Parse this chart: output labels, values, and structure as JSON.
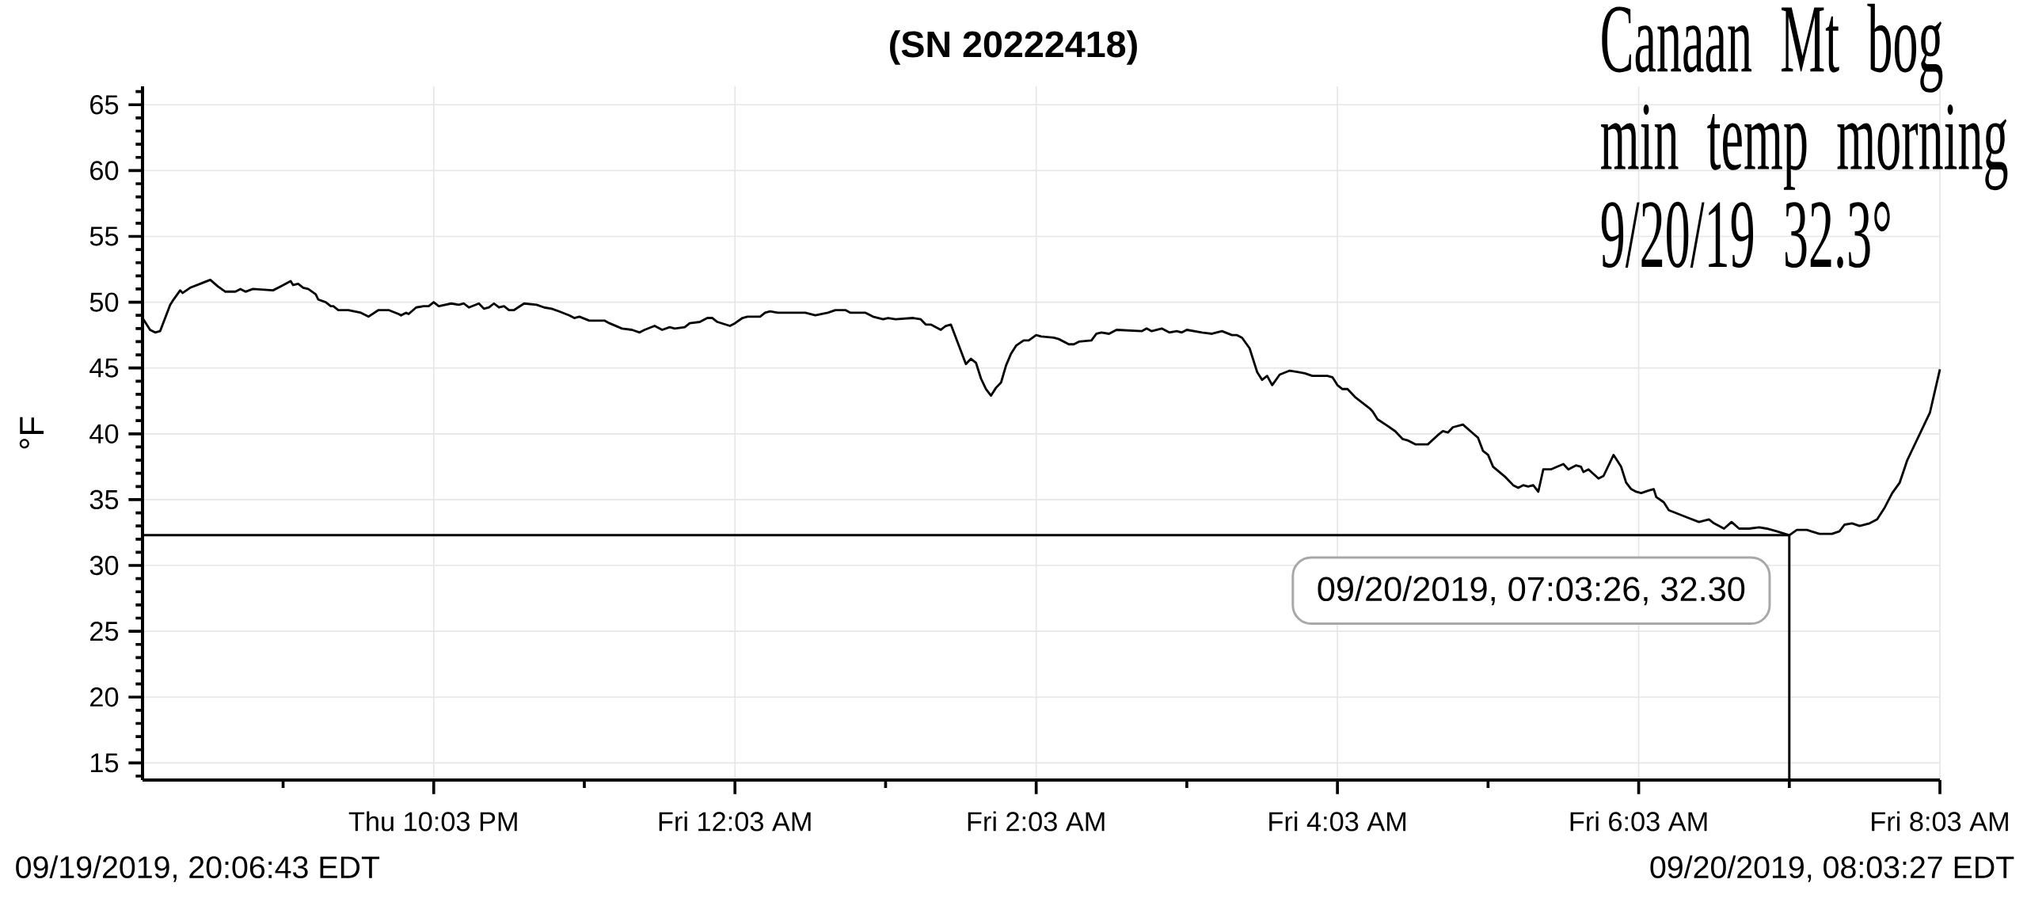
{
  "chart_data": {
    "type": "line",
    "title": "(SN 20222418)",
    "ylabel": "°F",
    "color": "#000000",
    "x": [
      "2019-09-19T20:07",
      "2019-09-19T20:10",
      "2019-09-19T20:12",
      "2019-09-19T20:14",
      "2019-09-19T20:18",
      "2019-09-19T20:19",
      "2019-09-19T20:22",
      "2019-09-19T20:23",
      "2019-09-19T20:26",
      "2019-09-19T20:30",
      "2019-09-19T20:34",
      "2019-09-19T20:37",
      "2019-09-19T20:40",
      "2019-09-19T20:44",
      "2019-09-19T20:46",
      "2019-09-19T20:48",
      "2019-09-19T20:51",
      "2019-09-19T20:59",
      "2019-09-19T21:02",
      "2019-09-19T21:06",
      "2019-09-19T21:07",
      "2019-09-19T21:09",
      "2019-09-19T21:11",
      "2019-09-19T21:13",
      "2019-09-19T21:16",
      "2019-09-19T21:17",
      "2019-09-19T21:20",
      "2019-09-19T21:22",
      "2019-09-19T21:23",
      "2019-09-19T21:25",
      "2019-09-19T21:29",
      "2019-09-19T21:34",
      "2019-09-19T21:37",
      "2019-09-19T21:41",
      "2019-09-19T21:45",
      "2019-09-19T21:49",
      "2019-09-19T21:50",
      "2019-09-19T21:52",
      "2019-09-19T21:53",
      "2019-09-19T21:56",
      "2019-09-19T21:59",
      "2019-09-19T22:01",
      "2019-09-19T22:03",
      "2019-09-19T22:05",
      "2019-09-19T22:10",
      "2019-09-19T22:13",
      "2019-09-19T22:15",
      "2019-09-19T22:17",
      "2019-09-19T22:21",
      "2019-09-19T22:23",
      "2019-09-19T22:25",
      "2019-09-19T22:27",
      "2019-09-19T22:29",
      "2019-09-19T22:31",
      "2019-09-19T22:33",
      "2019-09-19T22:35",
      "2019-09-19T22:39",
      "2019-09-19T22:44",
      "2019-09-19T22:47",
      "2019-09-19T22:50",
      "2019-09-19T22:53",
      "2019-09-19T22:57",
      "2019-09-19T22:59",
      "2019-09-19T23:01",
      "2019-09-19T23:05",
      "2019-09-19T23:11",
      "2019-09-19T23:13",
      "2019-09-19T23:18",
      "2019-09-19T23:22",
      "2019-09-19T23:25",
      "2019-09-19T23:27",
      "2019-09-19T23:31",
      "2019-09-19T23:34",
      "2019-09-19T23:37",
      "2019-09-19T23:39",
      "2019-09-19T23:43",
      "2019-09-19T23:45",
      "2019-09-19T23:49",
      "2019-09-19T23:52",
      "2019-09-19T23:54",
      "2019-09-19T23:56",
      "2019-09-20T00:01",
      "2019-09-20T00:03",
      "2019-09-20T00:06",
      "2019-09-20T00:08",
      "2019-09-20T00:13",
      "2019-09-20T00:15",
      "2019-09-20T00:17",
      "2019-09-20T00:20",
      "2019-09-20T00:26",
      "2019-09-20T00:31",
      "2019-09-20T00:35",
      "2019-09-20T00:40",
      "2019-09-20T00:43",
      "2019-09-20T00:47",
      "2019-09-20T00:49",
      "2019-09-20T00:55",
      "2019-09-20T00:58",
      "2019-09-20T01:02",
      "2019-09-20T01:04",
      "2019-09-20T01:07",
      "2019-09-20T01:14",
      "2019-09-20T01:17",
      "2019-09-20T01:19",
      "2019-09-20T01:21",
      "2019-09-20T01:25",
      "2019-09-20T01:27",
      "2019-09-20T01:29",
      "2019-09-20T01:31",
      "2019-09-20T01:33",
      "2019-09-20T01:35",
      "2019-09-20T01:37",
      "2019-09-20T01:39",
      "2019-09-20T01:41",
      "2019-09-20T01:43",
      "2019-09-20T01:45",
      "2019-09-20T01:47",
      "2019-09-20T01:49",
      "2019-09-20T01:51",
      "2019-09-20T01:53",
      "2019-09-20T01:55",
      "2019-09-20T01:58",
      "2019-09-20T02:00",
      "2019-09-20T02:03",
      "2019-09-20T02:05",
      "2019-09-20T02:10",
      "2019-09-20T02:12",
      "2019-09-20T02:16",
      "2019-09-20T02:18",
      "2019-09-20T02:20",
      "2019-09-20T02:25",
      "2019-09-20T02:27",
      "2019-09-20T02:29",
      "2019-09-20T02:32",
      "2019-09-20T02:35",
      "2019-09-20T02:45",
      "2019-09-20T02:47",
      "2019-09-20T02:49",
      "2019-09-20T02:53",
      "2019-09-20T02:56",
      "2019-09-20T02:59",
      "2019-09-20T03:01",
      "2019-09-20T03:03",
      "2019-09-20T03:09",
      "2019-09-20T03:13",
      "2019-09-20T03:17",
      "2019-09-20T03:21",
      "2019-09-20T03:23",
      "2019-09-20T03:25",
      "2019-09-20T03:28",
      "2019-09-20T03:31",
      "2019-09-20T03:33",
      "2019-09-20T03:35",
      "2019-09-20T03:37",
      "2019-09-20T03:40",
      "2019-09-20T03:44",
      "2019-09-20T03:47",
      "2019-09-20T03:50",
      "2019-09-20T03:53",
      "2019-09-20T03:59",
      "2019-09-20T04:01",
      "2019-09-20T04:03",
      "2019-09-20T04:05",
      "2019-09-20T04:07",
      "2019-09-20T04:10",
      "2019-09-20T04:16",
      "2019-09-20T04:17",
      "2019-09-20T04:19",
      "2019-09-20T04:23",
      "2019-09-20T04:26",
      "2019-09-20T04:29",
      "2019-09-20T04:31",
      "2019-09-20T04:34",
      "2019-09-20T04:39",
      "2019-09-20T04:43",
      "2019-09-20T04:45",
      "2019-09-20T04:47",
      "2019-09-20T04:49",
      "2019-09-20T04:53",
      "2019-09-20T04:56",
      "2019-09-20T04:59",
      "2019-09-20T05:01",
      "2019-09-20T05:03",
      "2019-09-20T05:05",
      "2019-09-20T05:10",
      "2019-09-20T05:13",
      "2019-09-20T05:15",
      "2019-09-20T05:17",
      "2019-09-20T05:19",
      "2019-09-20T05:21",
      "2019-09-20T05:23",
      "2019-09-20T05:25",
      "2019-09-20T05:28",
      "2019-09-20T05:33",
      "2019-09-20T05:35",
      "2019-09-20T05:38",
      "2019-09-20T05:40",
      "2019-09-20T05:41",
      "2019-09-20T05:43",
      "2019-09-20T05:47",
      "2019-09-20T05:49",
      "2019-09-20T05:53",
      "2019-09-20T05:56",
      "2019-09-20T05:58",
      "2019-09-20T06:00",
      "2019-09-20T06:02",
      "2019-09-20T06:04",
      "2019-09-20T06:07",
      "2019-09-20T06:09",
      "2019-09-20T06:10",
      "2019-09-20T06:13",
      "2019-09-20T06:15",
      "2019-09-20T06:19",
      "2019-09-20T06:23",
      "2019-09-20T06:27",
      "2019-09-20T06:31",
      "2019-09-20T06:33",
      "2019-09-20T06:37",
      "2019-09-20T06:40",
      "2019-09-20T06:43",
      "2019-09-20T06:47",
      "2019-09-20T06:51",
      "2019-09-20T06:54",
      "2019-09-20T06:58",
      "2019-09-20T07:03",
      "2019-09-20T07:06",
      "2019-09-20T07:10",
      "2019-09-20T07:15",
      "2019-09-20T07:20",
      "2019-09-20T07:23",
      "2019-09-20T07:25",
      "2019-09-20T07:28",
      "2019-09-20T07:31",
      "2019-09-20T07:35",
      "2019-09-20T07:38",
      "2019-09-20T07:41",
      "2019-09-20T07:44",
      "2019-09-20T07:47",
      "2019-09-20T07:50",
      "2019-09-20T07:52",
      "2019-09-20T07:55",
      "2019-09-20T07:59",
      "2019-09-20T08:03"
    ],
    "values": [
      48.8,
      47.9,
      47.7,
      47.8,
      49.8,
      50.1,
      50.9,
      50.7,
      51.1,
      51.4,
      51.7,
      51.2,
      50.8,
      50.8,
      51.0,
      50.8,
      51.0,
      50.9,
      51.2,
      51.6,
      51.3,
      51.4,
      51.1,
      51.0,
      50.6,
      50.2,
      50.0,
      49.7,
      49.7,
      49.4,
      49.4,
      49.2,
      48.9,
      49.4,
      49.4,
      49.1,
      49.0,
      49.2,
      49.1,
      49.6,
      49.7,
      49.7,
      50.0,
      49.7,
      49.9,
      49.8,
      49.9,
      49.6,
      49.9,
      49.5,
      49.6,
      49.9,
      49.6,
      49.7,
      49.4,
      49.4,
      49.9,
      49.8,
      49.6,
      49.5,
      49.3,
      49.0,
      48.8,
      48.9,
      48.6,
      48.6,
      48.4,
      48.0,
      47.9,
      47.7,
      47.9,
      48.2,
      47.9,
      48.1,
      48.0,
      48.1,
      48.4,
      48.5,
      48.8,
      48.8,
      48.5,
      48.2,
      48.4,
      48.8,
      48.9,
      48.9,
      49.2,
      49.3,
      49.2,
      49.2,
      49.2,
      49.0,
      49.2,
      49.4,
      49.4,
      49.2,
      49.2,
      48.9,
      48.7,
      48.8,
      48.7,
      48.8,
      48.7,
      48.3,
      48.3,
      47.9,
      48.2,
      48.3,
      47.3,
      46.3,
      45.3,
      45.7,
      45.4,
      44.2,
      43.4,
      42.9,
      43.5,
      43.9,
      45.2,
      46.1,
      46.7,
      47.1,
      47.1,
      47.5,
      47.4,
      47.3,
      47.2,
      46.8,
      46.8,
      47.0,
      47.1,
      47.6,
      47.7,
      47.6,
      47.9,
      47.8,
      48.0,
      47.8,
      48.0,
      47.7,
      47.8,
      47.7,
      47.9,
      47.7,
      47.6,
      47.8,
      47.5,
      47.5,
      47.3,
      46.5,
      44.7,
      44.1,
      44.4,
      43.7,
      44.5,
      44.8,
      44.7,
      44.6,
      44.4,
      44.4,
      44.3,
      43.7,
      43.4,
      43.4,
      42.8,
      41.9,
      41.7,
      41.1,
      40.6,
      40.2,
      39.6,
      39.5,
      39.2,
      39.2,
      39.9,
      40.2,
      40.1,
      40.5,
      40.7,
      40.2,
      39.7,
      38.7,
      38.4,
      37.5,
      36.7,
      36.1,
      35.9,
      36.1,
      36.0,
      36.1,
      35.6,
      37.3,
      37.3,
      37.7,
      37.3,
      37.6,
      37.5,
      37.1,
      37.3,
      36.6,
      36.8,
      38.4,
      37.5,
      36.3,
      35.8,
      35.6,
      35.5,
      35.7,
      35.8,
      35.2,
      34.8,
      34.2,
      33.9,
      33.6,
      33.3,
      33.5,
      33.2,
      32.8,
      33.3,
      32.8,
      32.8,
      32.9,
      32.8,
      32.6,
      32.3,
      32.7,
      32.7,
      32.4,
      32.4,
      32.6,
      33.1,
      33.2,
      33.0,
      33.2,
      33.5,
      34.4,
      35.5,
      36.3,
      38.0,
      38.8,
      40.0,
      41.6,
      44.9
    ],
    "xlim": [
      "2019-09-19T20:07",
      "2019-09-20T08:03"
    ],
    "xticks": [
      {
        "value": "2019-09-19T21:03",
        "label": null
      },
      {
        "value": "2019-09-19T22:03",
        "label": "Thu 10:03 PM"
      },
      {
        "value": "2019-09-19T23:03",
        "label": null
      },
      {
        "value": "2019-09-20T00:03",
        "label": "Fri 12:03 AM"
      },
      {
        "value": "2019-09-20T01:03",
        "label": null
      },
      {
        "value": "2019-09-20T02:03",
        "label": "Fri 2:03 AM"
      },
      {
        "value": "2019-09-20T03:03",
        "label": null
      },
      {
        "value": "2019-09-20T04:03",
        "label": "Fri 4:03 AM"
      },
      {
        "value": "2019-09-20T05:03",
        "label": null
      },
      {
        "value": "2019-09-20T06:03",
        "label": "Fri 6:03 AM"
      },
      {
        "value": "2019-09-20T07:03",
        "label": null
      },
      {
        "value": "2019-09-20T08:03",
        "label": "Fri 8:03 AM"
      }
    ],
    "ylim": [
      13.7,
      66.4
    ],
    "yticks": [
      {
        "value": 14,
        "label": null
      },
      15,
      {
        "value": 16,
        "label": null
      },
      {
        "value": 17,
        "label": null
      },
      {
        "value": 18,
        "label": null
      },
      {
        "value": 19,
        "label": null
      },
      20,
      {
        "value": 21,
        "label": null
      },
      {
        "value": 22,
        "label": null
      },
      {
        "value": 23,
        "label": null
      },
      {
        "value": 24,
        "label": null
      },
      25,
      {
        "value": 26,
        "label": null
      },
      {
        "value": 27,
        "label": null
      },
      {
        "value": 28,
        "label": null
      },
      {
        "value": 29,
        "label": null
      },
      30,
      {
        "value": 31,
        "label": null
      },
      {
        "value": 32,
        "label": null
      },
      {
        "value": 33,
        "label": null
      },
      {
        "value": 34,
        "label": null
      },
      35,
      {
        "value": 36,
        "label": null
      },
      {
        "value": 37,
        "label": null
      },
      {
        "value": 38,
        "label": null
      },
      {
        "value": 39,
        "label": null
      },
      40,
      {
        "value": 41,
        "label": null
      },
      {
        "value": 42,
        "label": null
      },
      {
        "value": 43,
        "label": null
      },
      {
        "value": 44,
        "label": null
      },
      45,
      {
        "value": 46,
        "label": null
      },
      {
        "value": 47,
        "label": null
      },
      {
        "value": 48,
        "label": null
      },
      {
        "value": 49,
        "label": null
      },
      50,
      {
        "value": 51,
        "label": null
      },
      {
        "value": 52,
        "label": null
      },
      {
        "value": 53,
        "label": null
      },
      {
        "value": 54,
        "label": null
      },
      55,
      {
        "value": 56,
        "label": null
      },
      {
        "value": 57,
        "label": null
      },
      {
        "value": 58,
        "label": null
      },
      {
        "value": 59,
        "label": null
      },
      60,
      {
        "value": 61,
        "label": null
      },
      {
        "value": 62,
        "label": null
      },
      {
        "value": 63,
        "label": null
      },
      {
        "value": 64,
        "label": null
      },
      65,
      {
        "value": 66,
        "label": null
      }
    ],
    "grid": true,
    "ref_lines": [
      {
        "axis": "y",
        "value": 32.3,
        "color": "#000000"
      },
      {
        "axis": "x",
        "value": "2019-09-20T07:03",
        "color": "#000000"
      }
    ],
    "annotations": [
      {
        "text": "09/20/2019, 07:03:26, 32.30",
        "x": "2019-09-20T07:03",
        "y": 32.3
      },
      "Canaan Mt bog min temp morning 9/20/19 32.3°",
      "09/19/2019, 20:06:43 EDT",
      "09/20/2019, 08:03:27 EDT"
    ]
  }
}
